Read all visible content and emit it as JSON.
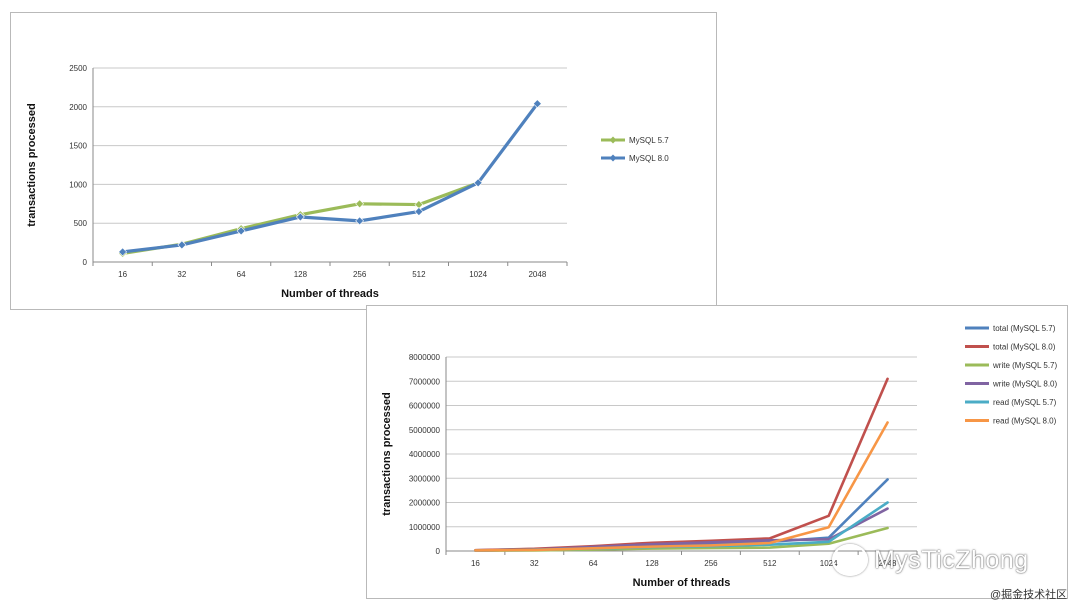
{
  "chart_data": [
    {
      "type": "line",
      "title": "",
      "xlabel": "Number of threads",
      "ylabel": "transactions processed",
      "categories": [
        "16",
        "32",
        "64",
        "128",
        "256",
        "512",
        "1024",
        "2048"
      ],
      "yticks": [
        "0",
        "500",
        "1000",
        "1500",
        "2000",
        "2500"
      ],
      "ylim": [
        0,
        2500
      ],
      "grid": true,
      "legend_position": "right",
      "series": [
        {
          "name": "MySQL 5.7",
          "color": "#9bbb59",
          "values": [
            110,
            230,
            430,
            610,
            750,
            740,
            1020,
            null
          ]
        },
        {
          "name": "MySQL 8.0",
          "color": "#4f81bd",
          "values": [
            130,
            220,
            400,
            580,
            530,
            650,
            1020,
            2040
          ]
        }
      ]
    },
    {
      "type": "line",
      "title": "",
      "xlabel": "Number of threads",
      "ylabel": "transactions processed",
      "categories": [
        "16",
        "32",
        "64",
        "128",
        "256",
        "512",
        "1024",
        "2048"
      ],
      "yticks": [
        "0",
        "1000000",
        "2000000",
        "3000000",
        "4000000",
        "5000000",
        "6000000",
        "7000000",
        "8000000"
      ],
      "ylim": [
        0,
        8000000
      ],
      "grid": true,
      "legend_position": "top-right",
      "series": [
        {
          "name": "total (MySQL 5.7)",
          "color": "#4f81bd",
          "values": [
            30000,
            80000,
            160000,
            260000,
            320000,
            380000,
            550000,
            2950000
          ]
        },
        {
          "name": "total (MySQL 8.0)",
          "color": "#c0504d",
          "values": [
            35000,
            90000,
            200000,
            340000,
            420000,
            520000,
            1450000,
            7100000
          ]
        },
        {
          "name": "write (MySQL 5.7)",
          "color": "#9bbb59",
          "values": [
            10000,
            25000,
            60000,
            100000,
            120000,
            140000,
            300000,
            950000
          ]
        },
        {
          "name": "write (MySQL 8.0)",
          "color": "#8064a2",
          "values": [
            15000,
            60000,
            170000,
            280000,
            360000,
            440000,
            480000,
            1750000
          ]
        },
        {
          "name": "read (MySQL 5.7)",
          "color": "#4bacc6",
          "values": [
            20000,
            55000,
            100000,
            160000,
            200000,
            260000,
            380000,
            2000000
          ]
        },
        {
          "name": "read (MySQL 8.0)",
          "color": "#f79646",
          "values": [
            25000,
            45000,
            110000,
            180000,
            230000,
            330000,
            980000,
            5300000
          ]
        }
      ]
    }
  ],
  "watermark": {
    "text": "MysTicZhong"
  },
  "credit": {
    "text": "@掘金技术社区"
  }
}
